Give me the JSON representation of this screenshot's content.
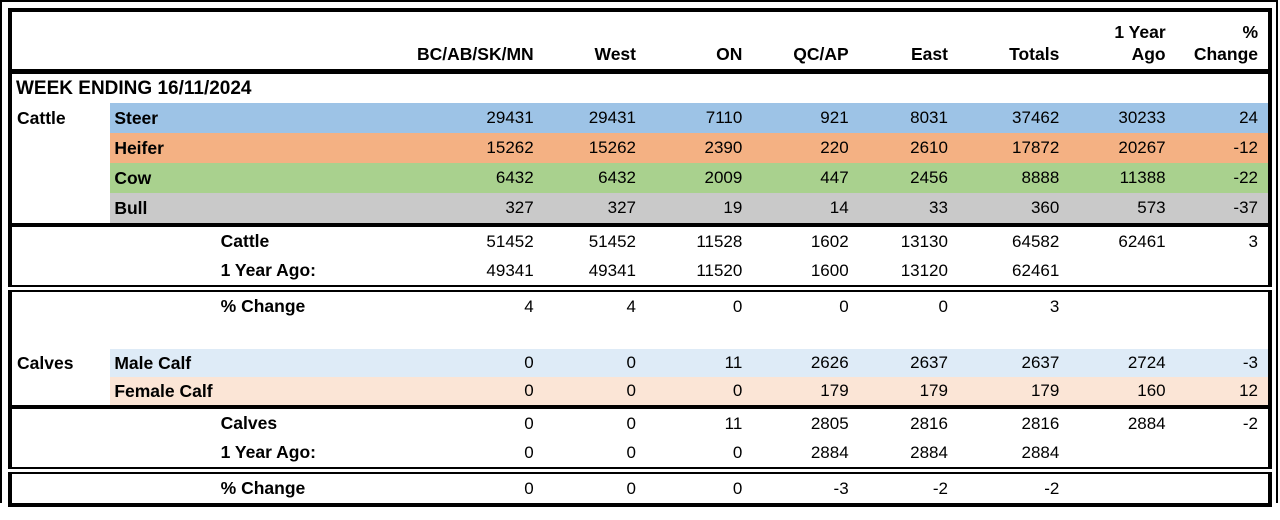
{
  "report": {
    "week_banner": "WEEK ENDING 16/11/2024",
    "columns": [
      {
        "label": "BC/AB/SK/MN"
      },
      {
        "label": "West"
      },
      {
        "label": "ON"
      },
      {
        "label": "QC/AP"
      },
      {
        "label": "East"
      },
      {
        "label": "Totals"
      },
      {
        "label": "1 Year\nAgo"
      },
      {
        "label": "%\nChange"
      }
    ],
    "rows": [
      {
        "type": "banner",
        "label": "WEEK ENDING 16/11/2024"
      },
      {
        "type": "category",
        "group": "Cattle",
        "label": "Steer",
        "color": "steer_blue",
        "values": [
          "29431",
          "29431",
          "7110",
          "921",
          "8031",
          "37462",
          "30233",
          "24"
        ]
      },
      {
        "type": "category",
        "group": "",
        "label": "Heifer",
        "color": "heifer_orange",
        "values": [
          "15262",
          "15262",
          "2390",
          "220",
          "2610",
          "17872",
          "20267",
          "-12"
        ]
      },
      {
        "type": "category",
        "group": "",
        "label": "Cow",
        "color": "cow_green",
        "values": [
          "6432",
          "6432",
          "2009",
          "447",
          "2456",
          "8888",
          "11388",
          "-22"
        ]
      },
      {
        "type": "category",
        "group": "",
        "label": "Bull",
        "color": "bull_gray",
        "section_end": true,
        "values": [
          "327",
          "327",
          "19",
          "14",
          "33",
          "360",
          "573",
          "-37"
        ]
      },
      {
        "type": "summary",
        "label": "Cattle",
        "values": [
          "51452",
          "51452",
          "11528",
          "1602",
          "13130",
          "64582",
          "62461",
          "3"
        ]
      },
      {
        "type": "summary",
        "label": "1 Year Ago:",
        "values": [
          "49341",
          "49341",
          "11520",
          "1600",
          "13120",
          "62461",
          "",
          ""
        ]
      },
      {
        "type": "pct",
        "label": "% Change",
        "values": [
          "4",
          "4",
          "0",
          "0",
          "0",
          "3",
          "",
          ""
        ]
      },
      {
        "type": "spacer"
      },
      {
        "type": "category",
        "group": "Calves",
        "label": "Male Calf",
        "color": "male_calf_blue",
        "calf": true,
        "values": [
          "0",
          "0",
          "11",
          "2626",
          "2637",
          "2637",
          "2724",
          "-3"
        ]
      },
      {
        "type": "category",
        "group": "",
        "label": "Female Calf",
        "color": "female_calf_peach",
        "calf": true,
        "section_end": true,
        "values": [
          "0",
          "0",
          "0",
          "179",
          "179",
          "179",
          "160",
          "12"
        ]
      },
      {
        "type": "summary",
        "label": "Calves",
        "values": [
          "0",
          "0",
          "11",
          "2805",
          "2816",
          "2816",
          "2884",
          "-2"
        ]
      },
      {
        "type": "summary",
        "label": "1 Year Ago:",
        "values": [
          "0",
          "0",
          "0",
          "2884",
          "2884",
          "2884",
          "",
          ""
        ]
      },
      {
        "type": "pct",
        "label": "% Change",
        "values": [
          "0",
          "0",
          "0",
          "-3",
          "-2",
          "-2",
          "",
          ""
        ]
      }
    ]
  },
  "colors": {
    "steer_blue": "#9DC3E6",
    "heifer_orange": "#F4B183",
    "cow_green": "#A9D18E",
    "bull_gray": "#C9C9C9",
    "male_calf_blue": "#DEEBF7",
    "female_calf_peach": "#FBE5D6",
    "border": "#000000",
    "background": "#FFFFFF"
  }
}
